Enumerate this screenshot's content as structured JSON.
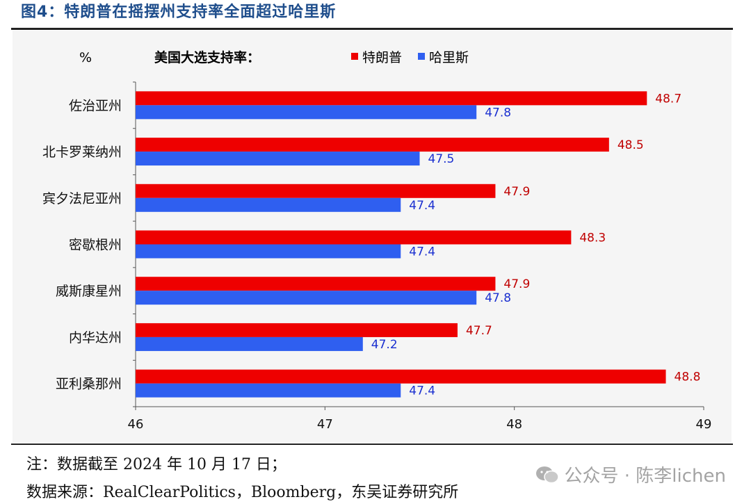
{
  "figure": {
    "title": "图4：特朗普在摇摆州支持率全面超过哈里斯",
    "note": "注：数据截至 2024 年 10 月 17 日；",
    "source": "数据来源：RealClearPolitics，Bloomberg，东吴证券研究所",
    "watermark": "公众号 · 陈李lichen"
  },
  "colors": {
    "trump": "#ee0000",
    "harris": "#2f5ff0",
    "trump_label": "#c00000",
    "harris_label": "#1a2fd0"
  },
  "chart_data": {
    "type": "bar",
    "orientation": "horizontal",
    "title": "美国大选支持率：",
    "unit_label": "%",
    "categories": [
      "佐治亚州",
      "北卡罗莱纳州",
      "宾夕法尼亚州",
      "密歇根州",
      "威斯康星州",
      "内华达州",
      "亚利桑那州"
    ],
    "series": [
      {
        "name": "特朗普",
        "values": [
          48.7,
          48.5,
          47.9,
          48.3,
          47.9,
          47.7,
          48.8
        ]
      },
      {
        "name": "哈里斯",
        "values": [
          47.8,
          47.5,
          47.4,
          47.4,
          47.8,
          47.2,
          47.4
        ]
      }
    ],
    "xlim": [
      46,
      49
    ],
    "xticks": [
      46,
      47,
      48,
      49
    ],
    "legend": "top",
    "grid": false
  }
}
